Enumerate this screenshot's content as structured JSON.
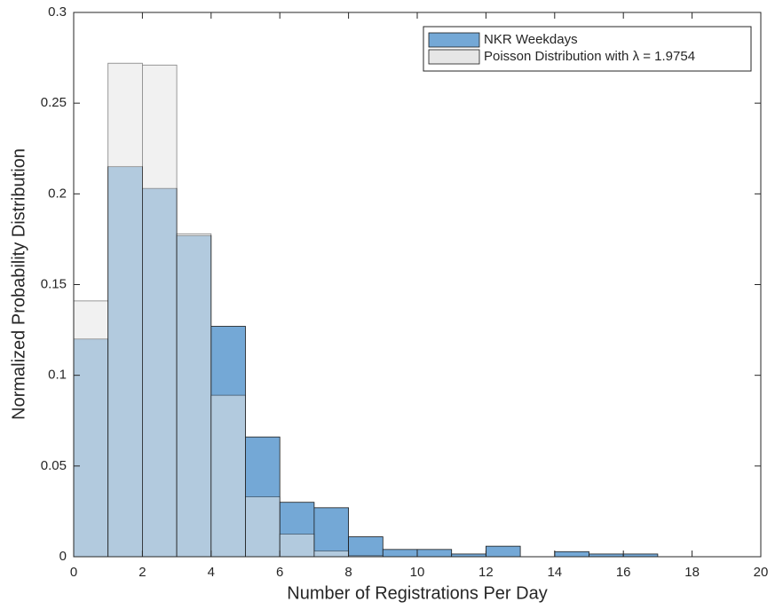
{
  "chart_data": {
    "type": "histogram",
    "xlabel": "Number of Registrations Per Day",
    "ylabel": "Normalized Probability Distribution",
    "bins": [
      0,
      1,
      2,
      3,
      4,
      5,
      6,
      7,
      8,
      9,
      10,
      11,
      12,
      13,
      14,
      15,
      16,
      17,
      18,
      19,
      20
    ],
    "series": [
      {
        "name": "NKR Weekdays",
        "color": "#74a8d6",
        "values": [
          0.12,
          0.215,
          0.203,
          0.177,
          0.127,
          0.066,
          0.03,
          0.027,
          0.011,
          0.004,
          0.004,
          0.0015,
          0.0058,
          0,
          0.0028,
          0.0015,
          0.0015,
          0,
          0,
          0
        ]
      },
      {
        "name": "Poisson Distribution with λ = 1.9754",
        "color": "#e6e6e6",
        "values": [
          0.141,
          0.272,
          0.271,
          0.178,
          0.089,
          0.033,
          0.0125,
          0.0032,
          0.0006,
          0,
          0,
          0,
          0,
          0,
          0,
          0,
          0,
          0,
          0,
          0
        ]
      }
    ],
    "xlim": [
      0,
      20
    ],
    "xticks": [
      0,
      2,
      4,
      6,
      8,
      10,
      12,
      14,
      16,
      18,
      20
    ],
    "ylim": [
      0,
      0.3
    ],
    "yticks": [
      0,
      0.05,
      0.1,
      0.15,
      0.2,
      0.25,
      0.3
    ],
    "legend": "top-right"
  }
}
